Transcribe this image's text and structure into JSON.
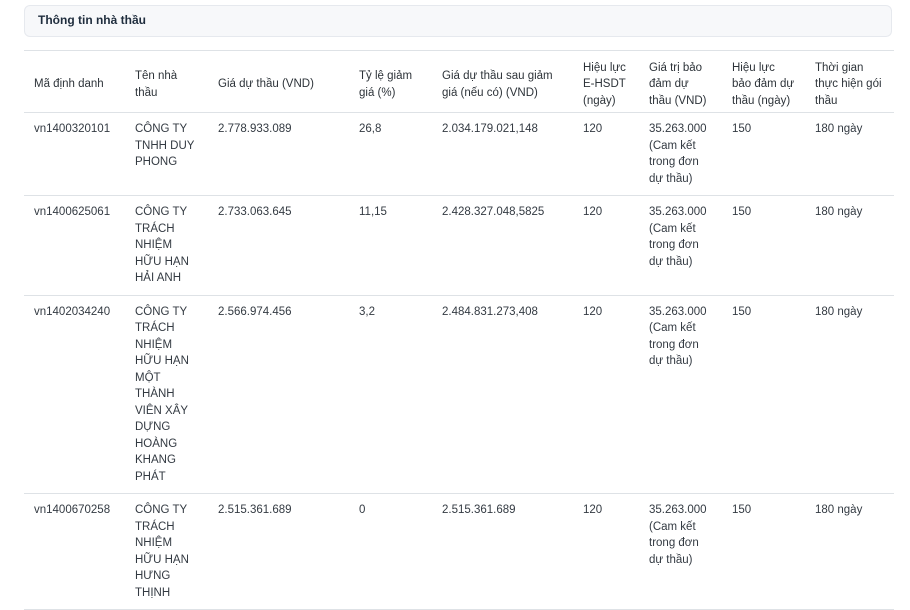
{
  "panel": {
    "title": "Thông tin nhà thầu"
  },
  "table": {
    "headers": {
      "id": "Mã định danh",
      "name": "Tên nhà thầu",
      "bid_price": "Giá dự thầu (VND)",
      "discount_rate": "Tỷ lệ giảm giá (%)",
      "price_after_discount": "Giá dự thầu sau giảm giá (nếu có) (VND)",
      "ehsdt_validity": "Hiệu lực E-HSDT (ngày)",
      "guarantee_value": "Giá trị bảo đảm dự thầu (VND)",
      "guarantee_validity": "Hiệu lực bảo đảm dự thầu (ngày)",
      "duration": "Thời gian thực hiện gói thầu"
    },
    "rows": [
      {
        "id": "vn1400320101",
        "name": "CÔNG TY TNHH DUY PHONG",
        "bid_price": "2.778.933.089",
        "discount_rate": "26,8",
        "price_after_discount": "2.034.179.021,148",
        "ehsdt_validity": "120",
        "guarantee_value": "35.263.000 (Cam kết trong đơn dự thầu)",
        "guarantee_validity": "150",
        "duration": "180 ngày"
      },
      {
        "id": "vn1400625061",
        "name": "CÔNG TY TRÁCH NHIỆM HỮU HẠN HẢI ANH",
        "bid_price": "2.733.063.645",
        "discount_rate": "11,15",
        "price_after_discount": "2.428.327.048,5825",
        "ehsdt_validity": "120",
        "guarantee_value": "35.263.000 (Cam kết trong đơn dự thầu)",
        "guarantee_validity": "150",
        "duration": "180 ngày"
      },
      {
        "id": "vn1402034240",
        "name": "CÔNG TY TRÁCH NHIỆM HỮU HẠN MỘT THÀNH VIÊN XÂY DỰNG HOÀNG KHANG PHÁT",
        "bid_price": "2.566.974.456",
        "discount_rate": "3,2",
        "price_after_discount": "2.484.831.273,408",
        "ehsdt_validity": "120",
        "guarantee_value": "35.263.000 (Cam kết trong đơn dự thầu)",
        "guarantee_validity": "150",
        "duration": "180 ngày"
      },
      {
        "id": "vn1400670258",
        "name": "CÔNG TY TRÁCH NHIỆM HỮU HẠN HƯNG THỊNH",
        "bid_price": "2.515.361.689",
        "discount_rate": "0",
        "price_after_discount": "2.515.361.689",
        "ehsdt_validity": "120",
        "guarantee_value": "35.263.000 (Cam kết trong đơn dự thầu)",
        "guarantee_validity": "150",
        "duration": "180 ngày"
      }
    ]
  }
}
